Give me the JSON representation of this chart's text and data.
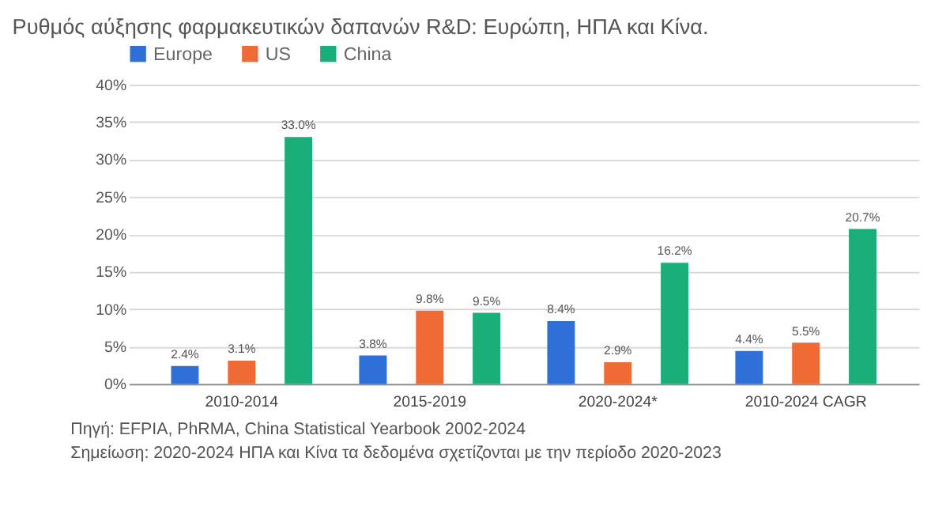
{
  "chart_data": {
    "type": "bar",
    "title": "Ρυθμός αύξησης φαρμακευτικών δαπανών R&D: Ευρώπη, ΗΠΑ και Κίνα.",
    "categories": [
      "2010-2014",
      "2015-2019",
      "2020-2024*",
      "2010-2024 CAGR"
    ],
    "series": [
      {
        "name": "Europe",
        "color": "#2e6fd8",
        "values": [
          2.4,
          3.8,
          8.4,
          4.4
        ],
        "value_labels": [
          "2.4%",
          "3.8%",
          "8.4%",
          "4.4%"
        ]
      },
      {
        "name": "US",
        "color": "#f06a35",
        "values": [
          3.1,
          9.8,
          2.9,
          5.5
        ],
        "value_labels": [
          "3.1%",
          "9.8%",
          "2.9%",
          "5.5%"
        ]
      },
      {
        "name": "China",
        "color": "#1aae78",
        "values": [
          33.0,
          9.5,
          16.2,
          20.7
        ],
        "value_labels": [
          "33.0%",
          "9.5%",
          "16.2%",
          "20.7%"
        ]
      }
    ],
    "ylim": [
      0,
      40
    ],
    "yticks": [
      {
        "value": 0,
        "label": "0%"
      },
      {
        "value": 5,
        "label": "5%"
      },
      {
        "value": 10,
        "label": "10%"
      },
      {
        "value": 15,
        "label": "15%"
      },
      {
        "value": 20,
        "label": "20%"
      },
      {
        "value": 25,
        "label": "25%"
      },
      {
        "value": 30,
        "label": "30%"
      },
      {
        "value": 35,
        "label": "35%"
      },
      {
        "value": 40,
        "label": "40%"
      }
    ],
    "grid": "y",
    "legend": "top left",
    "annotations": [
      "Πηγή: EFPIA, PhRMA, China Statistical Yearbook 2002-2024",
      "Σημείωση: 2020-2024 ΗΠΑ και Κίνα τα δεδομένα σχετίζονται με την περίοδο 2020-2023"
    ]
  }
}
